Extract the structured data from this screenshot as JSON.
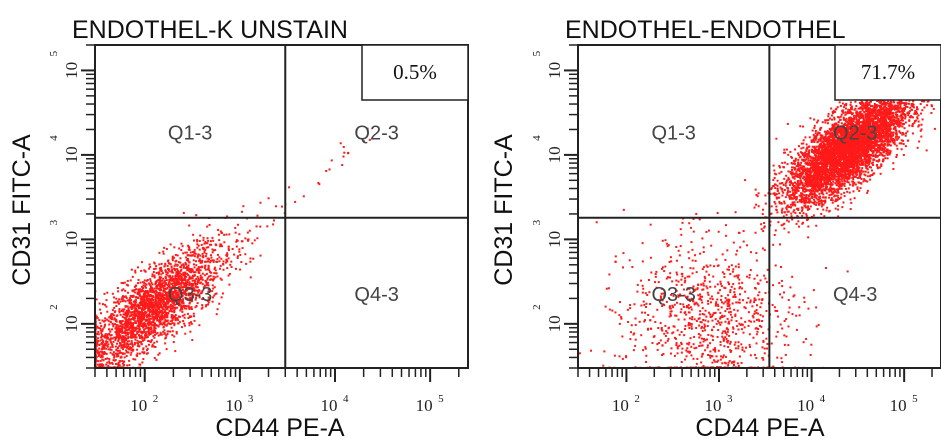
{
  "chart_data": [
    {
      "type": "scatter",
      "title": "ENDOTHEL-K UNSTAIN",
      "xlabel": "CD44 PE-A",
      "ylabel": "CD31 FITC-A",
      "xscale": "log",
      "yscale": "log",
      "xlim": [
        30,
        250000
      ],
      "ylim": [
        30,
        200000
      ],
      "x_ticks": [
        "10^2",
        "10^3",
        "10^4",
        "10^5"
      ],
      "y_ticks": [
        "10^2",
        "10^3",
        "10^4",
        "10^5"
      ],
      "quadrant_gate": {
        "x": 3000,
        "y": 1800
      },
      "quadrants": [
        "Q1-3",
        "Q2-3",
        "Q3-3",
        "Q4-3"
      ],
      "q2_percent": "0.5%",
      "point_color": "#ff1a1a",
      "population": {
        "center": [
          120,
          150
        ],
        "spread_log10": 0.38,
        "correlation": 0.8,
        "n": 2600,
        "diagonal_tail_n": 40
      }
    },
    {
      "type": "scatter",
      "title": "ENDOTHEL-ENDOTHEL",
      "xlabel": "CD44 PE-A",
      "ylabel": "CD31 FITC-A",
      "xscale": "log",
      "yscale": "log",
      "xlim": [
        30,
        250000
      ],
      "ylim": [
        30,
        200000
      ],
      "x_ticks": [
        "10^2",
        "10^3",
        "10^4",
        "10^5"
      ],
      "y_ticks": [
        "10^2",
        "10^3",
        "10^4",
        "10^5"
      ],
      "quadrant_gate": {
        "x": 3500,
        "y": 1800
      },
      "quadrants": [
        "Q1-3",
        "Q2-3",
        "Q3-3",
        "Q4-3"
      ],
      "q2_percent": "71.7%",
      "point_color": "#ff1a1a",
      "population": {
        "center": [
          25000,
          12000
        ],
        "spread_log10": 0.33,
        "correlation": 0.75,
        "n": 5200,
        "low_cluster_center": [
          800,
          120
        ],
        "low_cluster_n": 900
      }
    }
  ]
}
